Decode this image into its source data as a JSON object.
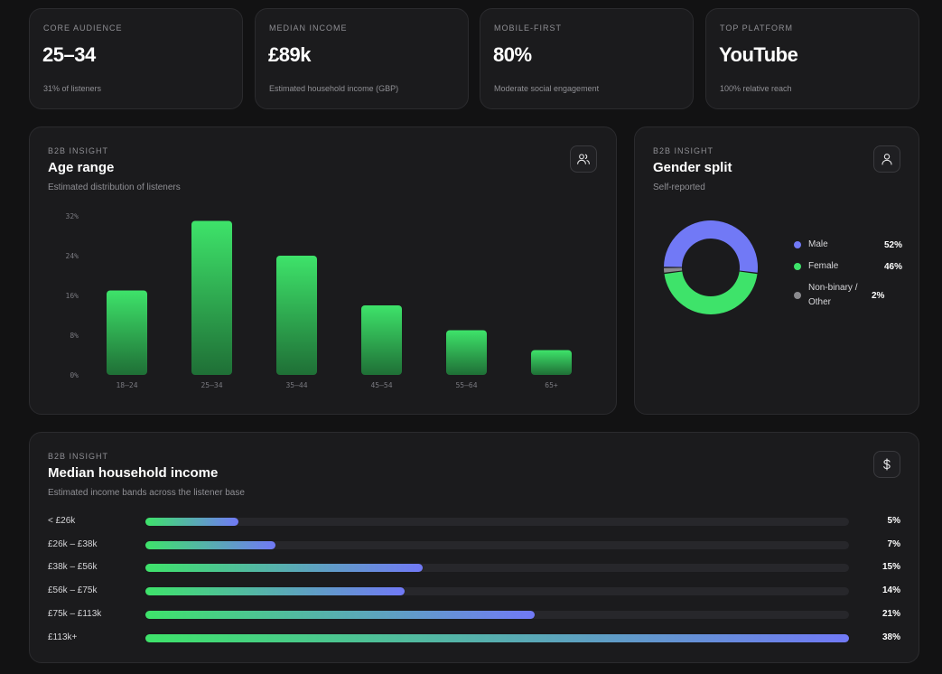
{
  "stats": [
    {
      "label": "CORE AUDIENCE",
      "value": "25–34",
      "sub": "31% of listeners"
    },
    {
      "label": "MEDIAN INCOME",
      "value": "£89k",
      "sub": "Estimated household income (GBP)"
    },
    {
      "label": "MOBILE-FIRST",
      "value": "80%",
      "sub": "Moderate social engagement"
    },
    {
      "label": "TOP PLATFORM",
      "value": "YouTube",
      "sub": "100% relative reach"
    }
  ],
  "age": {
    "eyebrow": "B2B INSIGHT",
    "title": "Age range",
    "desc": "Estimated distribution of listeners",
    "icon": "users-icon"
  },
  "gender": {
    "eyebrow": "B2B INSIGHT",
    "title": "Gender split",
    "desc": "Self-reported",
    "icon": "user-icon",
    "legend": [
      {
        "name": "Male",
        "pct": "52%",
        "color": "#7179f6"
      },
      {
        "name": "Female",
        "pct": "46%",
        "color": "#3ee36a"
      },
      {
        "name": "Non-binary / Other",
        "pct": "2%",
        "color": "#8a8a8e"
      }
    ]
  },
  "income": {
    "eyebrow": "B2B INSIGHT",
    "title": "Median household income",
    "desc": "Estimated income bands across the listener base",
    "icon": "dollar-icon",
    "rows": [
      {
        "label": "< £26k",
        "pct": "5%",
        "value": 5
      },
      {
        "label": "£26k – £38k",
        "pct": "7%",
        "value": 7
      },
      {
        "label": "£38k – £56k",
        "pct": "15%",
        "value": 15
      },
      {
        "label": "£56k – £75k",
        "pct": "14%",
        "value": 14
      },
      {
        "label": "£75k – £113k",
        "pct": "21%",
        "value": 21
      },
      {
        "label": "£113k+",
        "pct": "38%",
        "value": 38
      }
    ],
    "max_value": 38
  },
  "colors": {
    "accent_green": "#3ee36a",
    "accent_purple": "#7179f6",
    "background": "#121213",
    "card": "#1b1b1d"
  },
  "chart_data": [
    {
      "type": "bar",
      "title": "Age range",
      "categories": [
        "18–24",
        "25–34",
        "35–44",
        "45–54",
        "55–64",
        "65+"
      ],
      "values": [
        17,
        31,
        24,
        14,
        9,
        5
      ],
      "yticks": [
        "0%",
        "8%",
        "16%",
        "24%",
        "32%"
      ],
      "ylim": [
        0,
        32
      ],
      "grid": false
    },
    {
      "type": "pie",
      "title": "Gender split",
      "labels": [
        "Male",
        "Female",
        "Non-binary / Other"
      ],
      "values": [
        52,
        46,
        2
      ]
    }
  ]
}
